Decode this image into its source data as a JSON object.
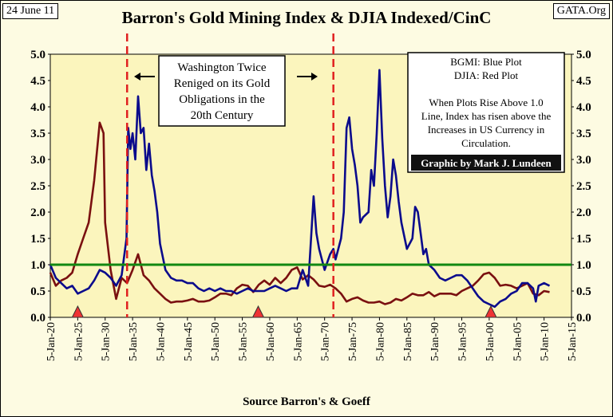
{
  "header": {
    "date_label": "24 June 11",
    "source_label": "GATA.Org"
  },
  "footer": {
    "source_text": "Source Barron's & Goeff"
  },
  "colors": {
    "plot_bg": "#fbf5bd",
    "bgmi": "#0b0b8c",
    "djia": "#7a1010",
    "reference_line": "#118811",
    "event_marker": "#e02020",
    "triangle": "#ee3333"
  },
  "chart_data": {
    "type": "line",
    "title": "Barron's Gold Mining Index & DJIA Indexed/CinC",
    "xlabel": "",
    "ylabel": "",
    "xlim": [
      1920,
      2015
    ],
    "ylim": [
      0,
      5
    ],
    "x_ticks": [
      "5-Jan-20",
      "5-Jan-25",
      "5-Jan-30",
      "5-Jan-35",
      "5-Jan-40",
      "5-Jan-45",
      "5-Jan-50",
      "5-Jan-55",
      "5-Jan-60",
      "5-Jan-65",
      "5-Jan-70",
      "5-Jan-75",
      "5-Jan-80",
      "5-Jan-85",
      "5-Jan-90",
      "5-Jan-95",
      "5-Jan-00",
      "5-Jan-05",
      "5-Jan-10",
      "5-Jan-15"
    ],
    "y_ticks": [
      "0.0",
      "0.5",
      "1.0",
      "1.5",
      "2.0",
      "2.5",
      "3.0",
      "3.5",
      "4.0",
      "4.5",
      "5.0"
    ],
    "reference_line": 1.0,
    "event_lines": [
      1934.0,
      1971.6
    ],
    "triangle_markers": [
      1925.0,
      1957.9,
      2000.3
    ],
    "series": [
      {
        "name": "BGMI",
        "x": [
          1920,
          1921,
          1922,
          1923,
          1924,
          1925,
          1926,
          1927,
          1928,
          1929,
          1930,
          1931,
          1932,
          1933,
          1933.9,
          1934.2,
          1934.6,
          1935,
          1935.5,
          1936,
          1936.5,
          1937,
          1937.5,
          1938,
          1938.5,
          1939,
          1939.5,
          1940,
          1941,
          1942,
          1943,
          1944,
          1945,
          1946,
          1947,
          1948,
          1949,
          1950,
          1951,
          1952,
          1953,
          1954,
          1955,
          1956,
          1957,
          1958,
          1959,
          1960,
          1961,
          1962,
          1963,
          1964,
          1965,
          1966,
          1967,
          1968,
          1968.5,
          1969,
          1970,
          1971,
          1971.6,
          1972,
          1973,
          1973.5,
          1974,
          1974.5,
          1975,
          1975.5,
          1976,
          1976.5,
          1977,
          1978,
          1978.5,
          1979,
          1979.5,
          1980,
          1980.5,
          1981,
          1981.5,
          1982,
          1982.5,
          1983,
          1983.5,
          1984,
          1985,
          1986,
          1986.5,
          1987,
          1987.5,
          1988,
          1988.5,
          1989,
          1990,
          1991,
          1992,
          1993,
          1994,
          1995,
          1996,
          1997,
          1998,
          1999,
          2000,
          2001,
          2002,
          2003,
          2004,
          2005,
          2006,
          2007,
          2008,
          2008.5,
          2009,
          2010,
          2011
        ],
        "values": [
          1.0,
          0.75,
          0.65,
          0.55,
          0.6,
          0.45,
          0.5,
          0.55,
          0.7,
          0.9,
          0.85,
          0.75,
          0.6,
          0.8,
          1.5,
          3.6,
          3.2,
          3.5,
          3.0,
          4.2,
          3.5,
          3.6,
          2.8,
          3.3,
          2.7,
          2.4,
          2.0,
          1.4,
          0.9,
          0.75,
          0.7,
          0.7,
          0.65,
          0.65,
          0.55,
          0.5,
          0.55,
          0.5,
          0.55,
          0.5,
          0.5,
          0.45,
          0.5,
          0.55,
          0.5,
          0.5,
          0.5,
          0.55,
          0.6,
          0.55,
          0.5,
          0.55,
          0.55,
          0.9,
          0.6,
          2.3,
          1.6,
          1.3,
          0.9,
          1.2,
          1.3,
          1.1,
          1.5,
          2.0,
          3.6,
          3.8,
          3.2,
          2.9,
          2.5,
          1.8,
          1.9,
          2.0,
          2.8,
          2.5,
          3.5,
          4.7,
          3.4,
          2.5,
          1.9,
          2.3,
          3.0,
          2.7,
          2.2,
          1.8,
          1.3,
          1.5,
          2.1,
          2.0,
          1.6,
          1.2,
          1.3,
          1.0,
          0.9,
          0.75,
          0.7,
          0.75,
          0.8,
          0.8,
          0.7,
          0.55,
          0.4,
          0.3,
          0.25,
          0.2,
          0.3,
          0.35,
          0.45,
          0.5,
          0.65,
          0.65,
          0.55,
          0.3,
          0.6,
          0.65,
          0.6
        ]
      },
      {
        "name": "DJIA",
        "x": [
          1920,
          1921,
          1922,
          1923,
          1924,
          1925,
          1926,
          1927,
          1928,
          1929,
          1929.7,
          1930,
          1931,
          1932,
          1933,
          1934,
          1935,
          1936,
          1937,
          1938,
          1939,
          1940,
          1941,
          1942,
          1943,
          1944,
          1945,
          1946,
          1947,
          1948,
          1949,
          1950,
          1951,
          1952,
          1953,
          1954,
          1955,
          1956,
          1957,
          1958,
          1959,
          1960,
          1961,
          1962,
          1963,
          1964,
          1965,
          1966,
          1967,
          1968,
          1969,
          1970,
          1971,
          1972,
          1973,
          1974,
          1975,
          1976,
          1977,
          1978,
          1979,
          1980,
          1981,
          1982,
          1983,
          1984,
          1985,
          1986,
          1987,
          1988,
          1989,
          1990,
          1991,
          1992,
          1993,
          1994,
          1995,
          1996,
          1997,
          1998,
          1999,
          2000,
          2001,
          2002,
          2003,
          2004,
          2005,
          2006,
          2007,
          2008,
          2009,
          2010,
          2011
        ],
        "values": [
          0.85,
          0.6,
          0.7,
          0.75,
          0.85,
          1.2,
          1.5,
          1.8,
          2.6,
          3.7,
          3.5,
          1.8,
          0.9,
          0.35,
          0.75,
          0.65,
          0.9,
          1.2,
          0.8,
          0.7,
          0.55,
          0.45,
          0.35,
          0.28,
          0.3,
          0.3,
          0.32,
          0.35,
          0.3,
          0.3,
          0.32,
          0.38,
          0.45,
          0.45,
          0.42,
          0.55,
          0.62,
          0.6,
          0.48,
          0.62,
          0.7,
          0.62,
          0.75,
          0.65,
          0.75,
          0.9,
          0.95,
          0.72,
          0.8,
          0.72,
          0.6,
          0.58,
          0.62,
          0.55,
          0.45,
          0.3,
          0.35,
          0.38,
          0.32,
          0.28,
          0.28,
          0.3,
          0.25,
          0.28,
          0.35,
          0.32,
          0.38,
          0.45,
          0.42,
          0.42,
          0.48,
          0.4,
          0.45,
          0.45,
          0.45,
          0.42,
          0.5,
          0.55,
          0.6,
          0.7,
          0.82,
          0.85,
          0.75,
          0.6,
          0.62,
          0.6,
          0.55,
          0.6,
          0.65,
          0.45,
          0.42,
          0.5,
          0.48
        ]
      }
    ],
    "annotations": {
      "center_box": [
        "Washington Twice",
        "Reniged on its Gold",
        "Obligations in the",
        "20th Century"
      ],
      "legend_box": [
        "BGMI: Blue Plot",
        "DJIA: Red Plot",
        "",
        "When Plots Rise Above 1.0",
        "Line, Index has risen above the",
        "Increases in US Currency in",
        "Circulation."
      ],
      "credit": "Graphic by Mark J. Lundeen"
    }
  }
}
